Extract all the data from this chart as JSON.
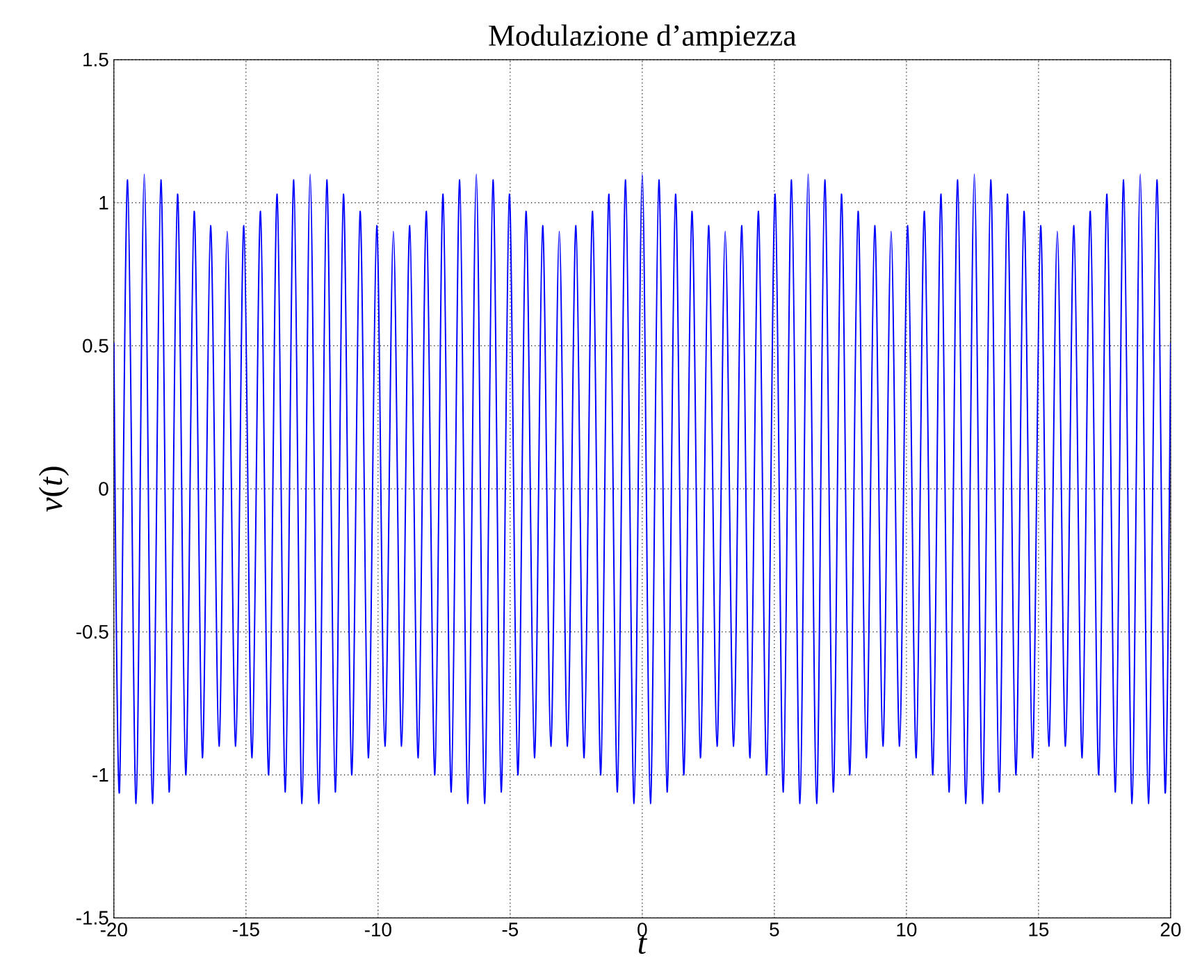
{
  "chart_data": {
    "type": "line",
    "title": "Modulazione d’ampiezza",
    "xlabel": "*t*",
    "ylabel": "*v*(*t*)",
    "xlim": [
      -20,
      20
    ],
    "ylim": [
      -1.5,
      1.5
    ],
    "xticks": [
      -20,
      -15,
      -10,
      -5,
      0,
      5,
      10,
      15,
      20
    ],
    "yticks": [
      -1.5,
      -1,
      -0.5,
      0,
      0.5,
      1,
      1.5
    ],
    "grid": true,
    "marker": "none",
    "line_style": "solid",
    "series": [
      {
        "color": "#0000ff",
        "x": [
          -20,
          -19.79,
          -19.48,
          -19.16,
          -18.85,
          -18.54,
          -18.22,
          -17.91,
          -17.59,
          -17.28,
          -16.96,
          -16.65,
          -16.34,
          -16.02,
          -15.71,
          -15.39,
          -15.08,
          -14.77,
          -14.45,
          -14.14,
          -13.82,
          -13.51,
          -13.19,
          -12.88,
          -12.57,
          -12.25,
          -11.94,
          -11.62,
          -11.31,
          -11.0,
          -10.68,
          -10.37,
          -10.05,
          -9.74,
          -9.42,
          -9.11,
          -8.8,
          -8.48,
          -8.17,
          -7.85,
          -7.54,
          -7.23,
          -6.91,
          -6.6,
          -6.28,
          -5.97,
          -5.65,
          -5.34,
          -5.03,
          -4.71,
          -4.4,
          -4.08,
          -3.77,
          -3.46,
          -3.14,
          -2.83,
          -2.51,
          -2.2,
          -1.88,
          -1.57,
          -1.26,
          -0.94,
          -0.63,
          -0.31,
          0,
          0.31,
          0.63,
          0.94,
          1.26,
          1.57,
          1.88,
          2.2,
          2.51,
          2.83,
          3.14,
          3.46,
          3.77,
          4.08,
          4.4,
          4.71,
          5.03,
          5.34,
          5.65,
          5.97,
          6.28,
          6.6,
          6.91,
          7.23,
          7.54,
          7.85,
          8.17,
          8.48,
          8.8,
          9.11,
          9.42,
          9.74,
          10.05,
          10.37,
          10.68,
          11.0,
          11.31,
          11.62,
          11.94,
          12.25,
          12.57,
          12.88,
          13.19,
          13.51,
          13.82,
          14.14,
          14.45,
          14.77,
          15.08,
          15.39,
          15.71,
          16.02,
          16.34,
          16.65,
          16.96,
          17.28,
          17.59,
          17.91,
          18.22,
          18.54,
          18.85,
          19.16,
          19.48,
          19.79,
          20
        ],
        "values": [
          0.51,
          -1.06,
          1.08,
          -1.1,
          1.1,
          -1.1,
          1.08,
          -1.06,
          1.03,
          -1.0,
          0.97,
          -0.94,
          0.92,
          -0.9,
          0.9,
          -0.9,
          0.92,
          -0.94,
          0.97,
          -1.0,
          1.03,
          -1.06,
          1.08,
          -1.1,
          1.1,
          -1.1,
          1.08,
          -1.06,
          1.03,
          -1.0,
          0.97,
          -0.94,
          0.92,
          -0.9,
          0.9,
          -0.9,
          0.92,
          -0.94,
          0.97,
          -1.0,
          1.03,
          -1.06,
          1.08,
          -1.1,
          1.1,
          -1.1,
          1.08,
          -1.06,
          1.03,
          -1.0,
          0.97,
          -0.94,
          0.92,
          -0.9,
          0.9,
          -0.9,
          0.92,
          -0.94,
          0.97,
          -1.0,
          1.03,
          -1.06,
          1.08,
          -1.1,
          1.1,
          -1.1,
          1.08,
          -1.06,
          1.03,
          -1.0,
          0.97,
          -0.94,
          0.92,
          -0.9,
          0.9,
          -0.9,
          0.92,
          -0.94,
          0.97,
          -1.0,
          1.03,
          -1.06,
          1.08,
          -1.1,
          1.1,
          -1.1,
          1.08,
          -1.06,
          1.03,
          -1.0,
          0.97,
          -0.94,
          0.92,
          -0.9,
          0.9,
          -0.9,
          0.92,
          -0.94,
          0.97,
          -1.0,
          1.03,
          -1.06,
          1.08,
          -1.1,
          1.1,
          -1.1,
          1.08,
          -1.06,
          1.03,
          -1.0,
          0.97,
          -0.94,
          0.92,
          -0.9,
          0.9,
          -0.9,
          0.92,
          -0.94,
          0.97,
          -1.0,
          1.03,
          -1.06,
          1.08,
          -1.1,
          1.1,
          -1.1,
          1.08,
          -1.06,
          0.51
        ]
      }
    ]
  }
}
